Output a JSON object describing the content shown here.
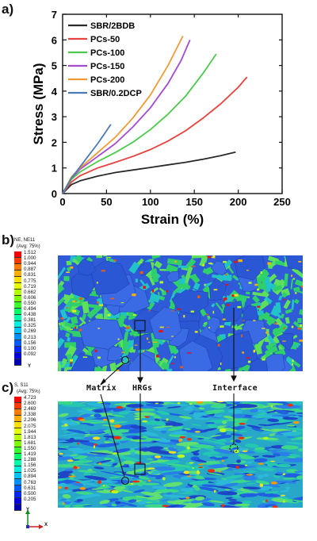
{
  "panels": {
    "a": "a)",
    "b": "b)",
    "c": "c)"
  },
  "chart_data": {
    "type": "line",
    "xlabel": "Strain (%)",
    "ylabel": "Stress (MPa)",
    "xlim": [
      0,
      250
    ],
    "ylim": [
      0,
      7
    ],
    "xticks": [
      "0",
      "50",
      "100",
      "150",
      "200",
      "250"
    ],
    "yticks": [
      "0",
      "1",
      "2",
      "3",
      "4",
      "5",
      "6",
      "7"
    ],
    "grid": false,
    "legend_position": "top-left",
    "series": [
      {
        "name": "SBR/2BDB",
        "color": "#2a2a2a",
        "x": [
          0,
          10,
          20,
          40,
          60,
          80,
          100,
          120,
          140,
          160,
          180,
          197
        ],
        "y": [
          0,
          0.35,
          0.5,
          0.68,
          0.82,
          0.92,
          1.02,
          1.12,
          1.22,
          1.34,
          1.48,
          1.62
        ]
      },
      {
        "name": "PCs-50",
        "color": "#e8413c",
        "x": [
          0,
          10,
          20,
          40,
          60,
          80,
          100,
          120,
          140,
          160,
          180,
          200,
          210
        ],
        "y": [
          0,
          0.45,
          0.7,
          1.0,
          1.22,
          1.45,
          1.72,
          2.05,
          2.45,
          2.95,
          3.5,
          4.15,
          4.55
        ]
      },
      {
        "name": "PCs-100",
        "color": "#4cc94c",
        "x": [
          0,
          10,
          20,
          40,
          60,
          80,
          100,
          120,
          140,
          160,
          175
        ],
        "y": [
          0,
          0.55,
          0.85,
          1.25,
          1.6,
          2.0,
          2.5,
          3.1,
          3.8,
          4.7,
          5.45
        ]
      },
      {
        "name": "PCs-150",
        "color": "#a24ad0",
        "x": [
          0,
          10,
          20,
          40,
          60,
          80,
          100,
          120,
          135,
          145
        ],
        "y": [
          0,
          0.6,
          0.95,
          1.45,
          1.95,
          2.6,
          3.35,
          4.3,
          5.2,
          6.0
        ]
      },
      {
        "name": "PCs-200",
        "color": "#f09a35",
        "x": [
          0,
          10,
          20,
          40,
          60,
          80,
          100,
          120,
          137
        ],
        "y": [
          0,
          0.65,
          1.0,
          1.6,
          2.2,
          2.95,
          3.85,
          5.0,
          6.15
        ]
      },
      {
        "name": "SBR/0.2DCP",
        "color": "#4a7ab8",
        "x": [
          0,
          10,
          20,
          30,
          40,
          50,
          55
        ],
        "y": [
          0,
          0.6,
          1.05,
          1.5,
          1.95,
          2.45,
          2.7
        ]
      }
    ]
  },
  "fem_b": {
    "legend_title_1": "NE, NE11",
    "legend_title_2": "(Avg: 75%)",
    "values": [
      "1.512",
      "1.000",
      "0.944",
      "0.887",
      "0.831",
      "0.775",
      "0.719",
      "0.662",
      "0.606",
      "0.550",
      "0.494",
      "0.438",
      "0.381",
      "0.325",
      "0.269",
      "0.213",
      "0.156",
      "0.100",
      "0.092"
    ],
    "axis_label": "Y"
  },
  "fem_c": {
    "legend_title_1": "S, S11",
    "legend_title_2": "(Avg: 75%)",
    "values": [
      "4.723",
      "2.600",
      "2.469",
      "2.338",
      "2.206",
      "2.075",
      "1.944",
      "1.813",
      "1.681",
      "1.550",
      "1.419",
      "1.288",
      "1.156",
      "1.025",
      "0.894",
      "0.763",
      "0.631",
      "0.500",
      "0.205"
    ],
    "axis_y": "Y",
    "axis_x": "X"
  },
  "annotations": {
    "matrix": "Matrix",
    "hrgs": "HRGs",
    "interface": "Interface"
  }
}
